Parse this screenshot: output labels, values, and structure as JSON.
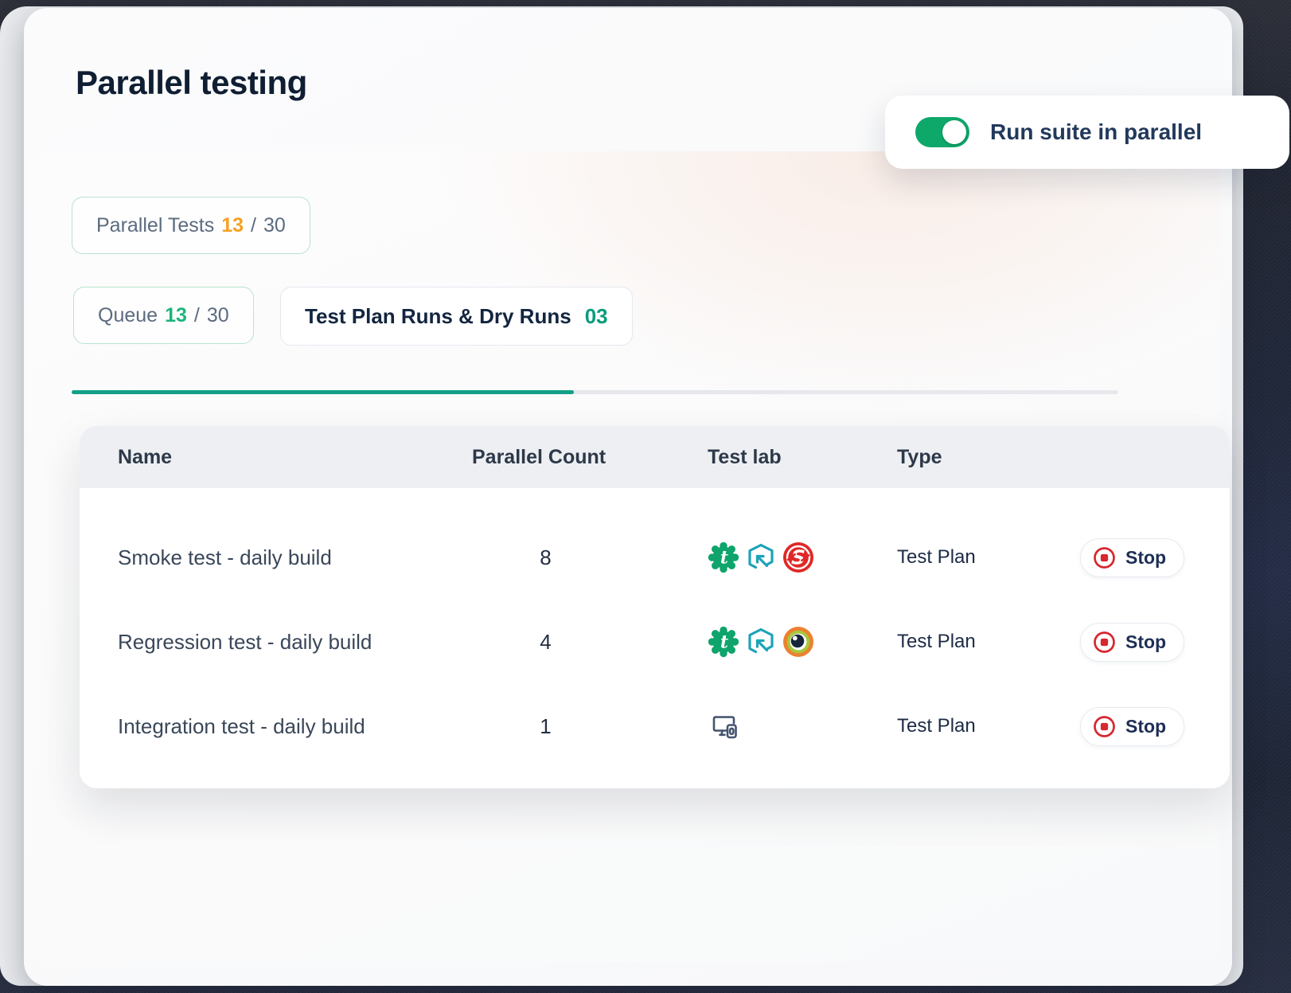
{
  "page": {
    "title": "Parallel testing"
  },
  "toggle": {
    "label": "Run suite in parallel",
    "state": "on"
  },
  "chips": {
    "parallel_tests": {
      "label": "Parallel Tests",
      "value": "13",
      "sep": "/",
      "total": "30"
    },
    "queue": {
      "label": "Queue",
      "value": "13",
      "sep": "/",
      "total": "30"
    },
    "test_plan_runs": {
      "label": "Test Plan Runs & Dry Runs",
      "value": "03"
    }
  },
  "progress": {
    "percent": 48
  },
  "table": {
    "columns": [
      "Name",
      "Parallel Count",
      "Test lab",
      "Type"
    ],
    "rows": [
      {
        "name": "Smoke test - daily build",
        "parallel_count": "8",
        "test_lab": [
          "testsigma",
          "deploy-cube",
          "saucelabs"
        ],
        "type": "Test Plan",
        "action": "Stop"
      },
      {
        "name": "Regression test - daily build",
        "parallel_count": "4",
        "test_lab": [
          "testsigma",
          "deploy-cube",
          "eye"
        ],
        "type": "Test Plan",
        "action": "Stop"
      },
      {
        "name": "Integration test - daily build",
        "parallel_count": "1",
        "test_lab": [
          "devices"
        ],
        "type": "Test Plan",
        "action": "Stop"
      }
    ]
  },
  "colors": {
    "toggle_on": "#0ea86b",
    "accent_teal": "#12a188",
    "value_orange": "#f6a021",
    "value_green": "#1cb47a",
    "value_teal": "#0a9c7b",
    "stop_red": "#d7282f",
    "chip_border_green": "#b7e4cd",
    "title_navy": "#101e33"
  }
}
